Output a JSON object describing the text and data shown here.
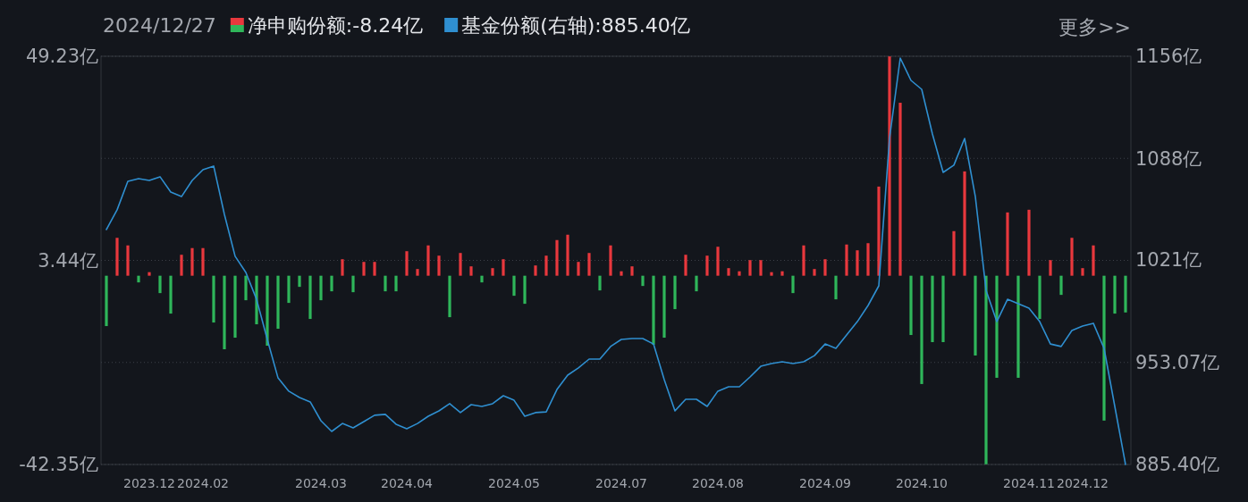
{
  "chart_data": {
    "type": "bar",
    "title": "2024/12/27",
    "legend": "top left",
    "grid": "y",
    "annotations": [
      "更多>>"
    ],
    "categories": [
      null,
      null,
      null,
      null,
      "2023.12",
      null,
      null,
      null,
      null,
      "2024.02",
      null,
      null,
      null,
      null,
      null,
      null,
      null,
      null,
      null,
      null,
      "2024.03",
      null,
      null,
      null,
      null,
      null,
      null,
      null,
      "2024.04",
      null,
      null,
      null,
      null,
      null,
      null,
      null,
      null,
      null,
      "2024.05",
      null,
      null,
      null,
      null,
      null,
      null,
      null,
      null,
      null,
      "2024.07",
      null,
      null,
      null,
      null,
      null,
      null,
      null,
      null,
      "2024.08",
      null,
      null,
      null,
      null,
      null,
      null,
      null,
      null,
      null,
      "2024.09",
      null,
      null,
      null,
      null,
      null,
      null,
      null,
      null,
      "2024.10",
      null,
      null,
      null,
      null,
      null,
      null,
      null,
      null,
      null,
      "2024.11",
      null,
      null,
      null,
      null,
      "2024.12",
      null,
      null,
      null,
      null
    ],
    "ylim": [
      -42.35,
      49.23
    ],
    "yticks": [
      {
        "value": 49.23,
        "label": "49.23亿"
      },
      {
        "value": 26.335,
        "label": null
      },
      {
        "value": 3.44,
        "label": "3.44亿"
      },
      {
        "value": -19.455,
        "label": null
      },
      {
        "value": -42.35,
        "label": "-42.35亿"
      }
    ],
    "y2lim": [
      885.4,
      1156
    ],
    "y2ticks": [
      {
        "value": 1156,
        "label": "1156亿"
      },
      {
        "value": 1088,
        "label": "1088亿"
      },
      {
        "value": 1021,
        "label": "1021亿"
      },
      {
        "value": 953.07,
        "label": "953.07亿"
      },
      {
        "value": 885.4,
        "label": "885.40亿"
      }
    ],
    "series": [
      {
        "name": "净申购份额:-8.24亿",
        "values": [
          -11.3,
          8.5,
          6.8,
          -1.5,
          0.8,
          -3.9,
          -8.5,
          4.7,
          6.2,
          6.2,
          -10.5,
          -16.5,
          -13.9,
          -5.5,
          -10.9,
          -15.7,
          -11.9,
          -6.1,
          -2.5,
          -9.7,
          -5.5,
          -3.5,
          3.7,
          -3.7,
          3.1,
          3.1,
          -3.5,
          -3.5,
          5.5,
          1.5,
          6.8,
          4.5,
          -9.3,
          5.1,
          2.1,
          -1.5,
          1.7,
          3.7,
          -4.5,
          -6.3,
          2.3,
          4.5,
          8.0,
          9.2,
          3.1,
          5.1,
          -3.3,
          6.8,
          1.0,
          2.1,
          -2.3,
          -15.5,
          -13.9,
          -7.5,
          4.7,
          -3.5,
          4.5,
          6.5,
          1.7,
          1.0,
          3.5,
          3.5,
          0.8,
          1.0,
          -3.9,
          6.8,
          1.5,
          3.7,
          -5.3,
          7.0,
          5.7,
          7.3,
          20.0,
          49.2,
          38.8,
          -13.3,
          -24.3,
          -14.9,
          -14.9,
          10.0,
          23.4,
          -17.9,
          -42.3,
          -22.9,
          14.2,
          -22.9,
          14.8,
          -9.7,
          3.5,
          -4.3,
          8.5,
          1.7,
          6.8,
          -32.5,
          -8.5,
          -8.24
        ],
        "colors": [
          "#2fb65a",
          "#e8383d",
          "#e8383d",
          "#2fb65a",
          "#e8383d",
          "#2fb65a",
          "#2fb65a",
          "#e8383d",
          "#e8383d",
          "#e8383d",
          "#2fb65a",
          "#2fb65a",
          "#2fb65a",
          "#2fb65a",
          "#2fb65a",
          "#2fb65a",
          "#2fb65a",
          "#2fb65a",
          "#2fb65a",
          "#2fb65a",
          "#2fb65a",
          "#2fb65a",
          "#e8383d",
          "#2fb65a",
          "#e8383d",
          "#e8383d",
          "#2fb65a",
          "#2fb65a",
          "#e8383d",
          "#e8383d",
          "#e8383d",
          "#e8383d",
          "#2fb65a",
          "#e8383d",
          "#e8383d",
          "#2fb65a",
          "#e8383d",
          "#e8383d",
          "#2fb65a",
          "#2fb65a",
          "#e8383d",
          "#e8383d",
          "#e8383d",
          "#e8383d",
          "#e8383d",
          "#e8383d",
          "#2fb65a",
          "#e8383d",
          "#e8383d",
          "#e8383d",
          "#2fb65a",
          "#2fb65a",
          "#2fb65a",
          "#2fb65a",
          "#e8383d",
          "#2fb65a",
          "#e8383d",
          "#e8383d",
          "#e8383d",
          "#e8383d",
          "#e8383d",
          "#e8383d",
          "#e8383d",
          "#e8383d",
          "#2fb65a",
          "#e8383d",
          "#e8383d",
          "#e8383d",
          "#2fb65a",
          "#e8383d",
          "#e8383d",
          "#e8383d",
          "#e8383d",
          "#e8383d",
          "#e8383d",
          "#2fb65a",
          "#2fb65a",
          "#2fb65a",
          "#2fb65a",
          "#e8383d",
          "#e8383d",
          "#2fb65a",
          "#2fb65a",
          "#2fb65a",
          "#e8383d",
          "#2fb65a",
          "#e8383d",
          "#2fb65a",
          "#e8383d",
          "#2fb65a",
          "#e8383d",
          "#e8383d",
          "#e8383d",
          "#2fb65a",
          "#2fb65a",
          "#2fb65a"
        ]
      },
      {
        "name": "基金份额(右轴):885.40亿",
        "type": "line",
        "axis": "y2",
        "color": "#2f8fd0",
        "values": [
          1041.1,
          1054.2,
          1073.1,
          1074.9,
          1073.7,
          1076.1,
          1066.0,
          1063.0,
          1073.7,
          1080.8,
          1083.2,
          1051.2,
          1023.4,
          1012.7,
          994.9,
          968.3,
          942.8,
          934.0,
          929.8,
          926.9,
          914.4,
          907.3,
          912.6,
          909.7,
          913.8,
          918.0,
          918.6,
          912.1,
          909.1,
          912.6,
          917.4,
          920.9,
          925.7,
          919.8,
          925.1,
          923.9,
          925.7,
          931.0,
          928.0,
          917.4,
          919.8,
          920.3,
          935.1,
          944.6,
          949.4,
          955.3,
          955.3,
          963.6,
          968.3,
          968.9,
          968.9,
          965.3,
          941.7,
          920.9,
          928.6,
          928.6,
          923.9,
          934.0,
          936.9,
          936.9,
          943.4,
          950.5,
          952.3,
          953.5,
          952.3,
          953.5,
          957.6,
          965.3,
          962.4,
          971.3,
          980.1,
          990.8,
          1003.8,
          1101.5,
          1154.8,
          1140.0,
          1134.1,
          1104.5,
          1079.0,
          1083.8,
          1101.5,
          1063.0,
          1000.9,
          980.1,
          994.9,
          992.0,
          989.0,
          980.1,
          965.3,
          963.6,
          974.2,
          977.2,
          979.0,
          962.4,
          923.9,
          885.4
        ]
      }
    ]
  }
}
